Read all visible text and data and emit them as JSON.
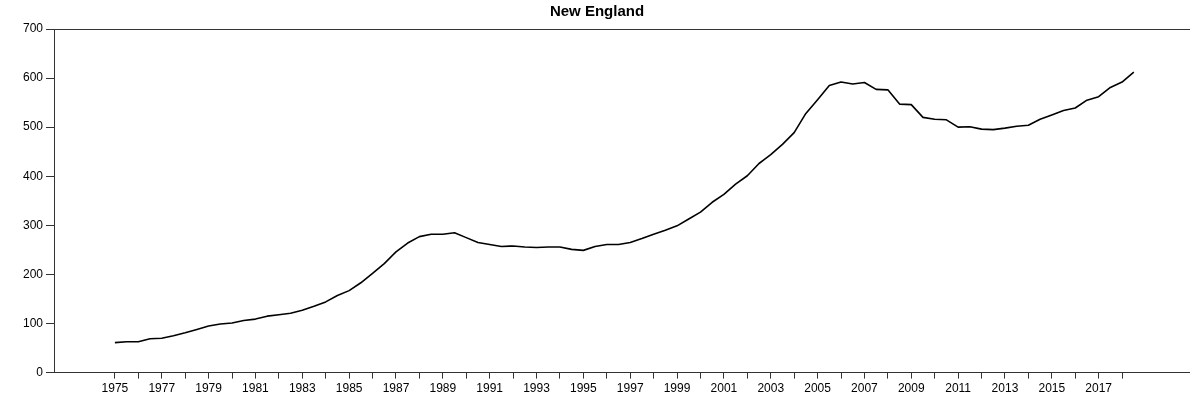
{
  "chart_data": {
    "type": "line",
    "title": "New England",
    "x": [
      1975,
      1975.5,
      1976,
      1976.5,
      1977,
      1977.5,
      1978,
      1978.5,
      1979,
      1979.5,
      1980,
      1980.5,
      1981,
      1981.5,
      1982,
      1982.5,
      1983,
      1983.5,
      1984,
      1984.5,
      1985,
      1985.5,
      1986,
      1986.5,
      1987,
      1987.5,
      1988,
      1988.5,
      1989,
      1989.5,
      1990,
      1990.5,
      1991,
      1991.5,
      1992,
      1992.5,
      1993,
      1993.5,
      1994,
      1994.5,
      1995,
      1995.5,
      1996,
      1996.5,
      1997,
      1997.5,
      1998,
      1998.5,
      1999,
      1999.5,
      2000,
      2000.5,
      2001,
      2001.5,
      2002,
      2002.5,
      2003,
      2003.5,
      2004,
      2004.5,
      2005,
      2005.5,
      2006,
      2006.5,
      2007,
      2007.5,
      2008,
      2008.5,
      2009,
      2009.5,
      2010,
      2010.5,
      2011,
      2011.5,
      2012,
      2012.5,
      2013,
      2013.5,
      2014,
      2014.5,
      2015,
      2015.5,
      2016,
      2016.5,
      2017,
      2017.5,
      2018,
      2018.5
    ],
    "series": [
      {
        "color": "#000000",
        "values": [
          61,
          63,
          63,
          69,
          70,
          75,
          81,
          88,
          95,
          99,
          101,
          106,
          109,
          115,
          118,
          121,
          127,
          135,
          144,
          157,
          167,
          183,
          202,
          222,
          246,
          264,
          277,
          282,
          282,
          285,
          275,
          265,
          261,
          257,
          258,
          256,
          255,
          256,
          256,
          251,
          249,
          257,
          261,
          261,
          265,
          273,
          282,
          290,
          299,
          313,
          327,
          347,
          363,
          384,
          401,
          426,
          444,
          465,
          489,
          528,
          556,
          585,
          592,
          588,
          591,
          577,
          576,
          547,
          546,
          520,
          516,
          515,
          500,
          501,
          496,
          495,
          498,
          502,
          504,
          516,
          525,
          534,
          539,
          555,
          562,
          581,
          592,
          612
        ]
      }
    ],
    "xlim": [
      1972.4,
      2020.9
    ],
    "xticks": [
      {
        "value": 1975,
        "label": "1975"
      },
      {
        "value": 1976,
        "label": null
      },
      {
        "value": 1977,
        "label": "1977"
      },
      {
        "value": 1978,
        "label": null
      },
      {
        "value": 1979,
        "label": "1979"
      },
      {
        "value": 1980,
        "label": null
      },
      {
        "value": 1981,
        "label": "1981"
      },
      {
        "value": 1982,
        "label": null
      },
      {
        "value": 1983,
        "label": "1983"
      },
      {
        "value": 1984,
        "label": null
      },
      {
        "value": 1985,
        "label": "1985"
      },
      {
        "value": 1986,
        "label": null
      },
      {
        "value": 1987,
        "label": "1987"
      },
      {
        "value": 1988,
        "label": null
      },
      {
        "value": 1989,
        "label": "1989"
      },
      {
        "value": 1990,
        "label": null
      },
      {
        "value": 1991,
        "label": "1991"
      },
      {
        "value": 1992,
        "label": null
      },
      {
        "value": 1993,
        "label": "1993"
      },
      {
        "value": 1994,
        "label": null
      },
      {
        "value": 1995,
        "label": "1995"
      },
      {
        "value": 1996,
        "label": null
      },
      {
        "value": 1997,
        "label": "1997"
      },
      {
        "value": 1998,
        "label": null
      },
      {
        "value": 1999,
        "label": "1999"
      },
      {
        "value": 2000,
        "label": null
      },
      {
        "value": 2001,
        "label": "2001"
      },
      {
        "value": 2002,
        "label": null
      },
      {
        "value": 2003,
        "label": "2003"
      },
      {
        "value": 2004,
        "label": null
      },
      {
        "value": 2005,
        "label": "2005"
      },
      {
        "value": 2006,
        "label": null
      },
      {
        "value": 2007,
        "label": "2007"
      },
      {
        "value": 2008,
        "label": null
      },
      {
        "value": 2009,
        "label": "2009"
      },
      {
        "value": 2010,
        "label": null
      },
      {
        "value": 2011,
        "label": "2011"
      },
      {
        "value": 2012,
        "label": null
      },
      {
        "value": 2013,
        "label": "2013"
      },
      {
        "value": 2014,
        "label": null
      },
      {
        "value": 2015,
        "label": "2015"
      },
      {
        "value": 2016,
        "label": null
      },
      {
        "value": 2017,
        "label": "2017"
      },
      {
        "value": 2018,
        "label": null
      }
    ],
    "ylim": [
      0,
      700
    ],
    "yticks": [
      0,
      100,
      200,
      300,
      400,
      500,
      600,
      700
    ],
    "grid": false,
    "legend": false,
    "marker": "none",
    "line_style": "solid"
  }
}
